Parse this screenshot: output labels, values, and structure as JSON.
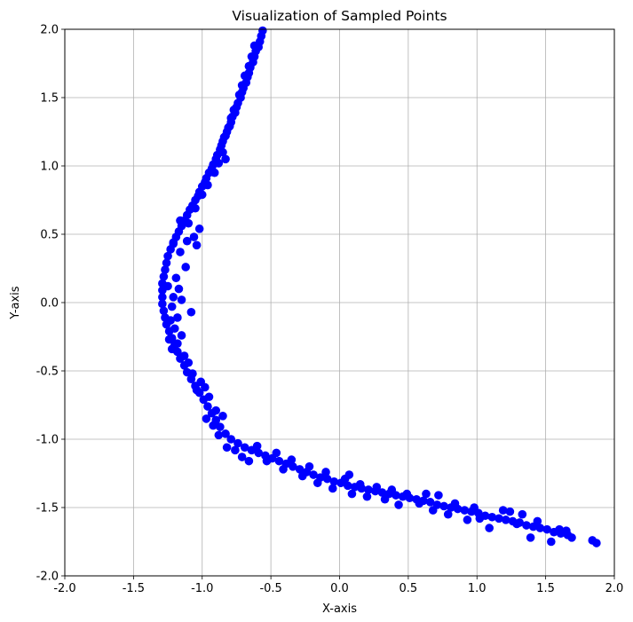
{
  "chart_data": {
    "type": "scatter",
    "title": "Visualization of Sampled Points",
    "xlabel": "X-axis",
    "ylabel": "Y-axis",
    "xlim": [
      -2.0,
      2.0
    ],
    "ylim": [
      -2.0,
      2.0
    ],
    "xticks": [
      "-2.0",
      "-1.5",
      "-1.0",
      "-0.5",
      "0.0",
      "0.5",
      "1.0",
      "1.5",
      "2.0"
    ],
    "yticks": [
      "-2.0",
      "-1.5",
      "-1.0",
      "-0.5",
      "0.0",
      "0.5",
      "1.0",
      "1.5",
      "2.0"
    ],
    "grid": true,
    "series": [
      {
        "color": "#0000ff",
        "points": [
          [
            -0.56,
            1.99
          ],
          [
            -0.57,
            1.95
          ],
          [
            -0.58,
            1.91
          ],
          [
            -0.59,
            1.87
          ],
          [
            -0.61,
            1.84
          ],
          [
            -0.62,
            1.8
          ],
          [
            -0.63,
            1.76
          ],
          [
            -0.65,
            1.72
          ],
          [
            -0.66,
            1.68
          ],
          [
            -0.67,
            1.65
          ],
          [
            -0.68,
            1.61
          ],
          [
            -0.7,
            1.57
          ],
          [
            -0.71,
            1.54
          ],
          [
            -0.72,
            1.5
          ],
          [
            -0.74,
            1.46
          ],
          [
            -0.75,
            1.43
          ],
          [
            -0.76,
            1.39
          ],
          [
            -0.78,
            1.36
          ],
          [
            -0.79,
            1.32
          ],
          [
            -0.8,
            1.29
          ],
          [
            -0.82,
            1.25
          ],
          [
            -0.83,
            1.22
          ],
          [
            -0.85,
            1.18
          ],
          [
            -0.86,
            1.15
          ],
          [
            -0.87,
            1.12
          ],
          [
            -0.89,
            1.08
          ],
          [
            -0.9,
            1.05
          ],
          [
            -0.92,
            1.01
          ],
          [
            -0.93,
            0.98
          ],
          [
            -0.95,
            0.95
          ],
          [
            -0.97,
            0.91
          ],
          [
            -0.98,
            0.88
          ],
          [
            -1.0,
            0.85
          ],
          [
            -1.02,
            0.81
          ],
          [
            -1.03,
            0.78
          ],
          [
            -1.05,
            0.75
          ],
          [
            -1.07,
            0.71
          ],
          [
            -1.09,
            0.68
          ],
          [
            -1.11,
            0.64
          ],
          [
            -1.13,
            0.6
          ],
          [
            -1.15,
            0.56
          ],
          [
            -1.17,
            0.52
          ],
          [
            -1.19,
            0.48
          ],
          [
            -1.21,
            0.44
          ],
          [
            -1.23,
            0.39
          ],
          [
            -1.25,
            0.34
          ],
          [
            -1.26,
            0.29
          ],
          [
            -1.27,
            0.24
          ],
          [
            -1.28,
            0.19
          ],
          [
            -1.29,
            0.14
          ],
          [
            -1.29,
            0.09
          ],
          [
            -1.29,
            0.04
          ],
          [
            -1.29,
            -0.01
          ],
          [
            -1.28,
            -0.06
          ],
          [
            -1.27,
            -0.11
          ],
          [
            -1.26,
            -0.16
          ],
          [
            -1.24,
            -0.21
          ],
          [
            -1.22,
            -0.26
          ],
          [
            -1.2,
            -0.31
          ],
          [
            -1.18,
            -0.36
          ],
          [
            -1.16,
            -0.41
          ],
          [
            -1.13,
            -0.46
          ],
          [
            -1.11,
            -0.51
          ],
          [
            -1.08,
            -0.56
          ],
          [
            -1.05,
            -0.61
          ],
          [
            -1.02,
            -0.66
          ],
          [
            -0.99,
            -0.71
          ],
          [
            -0.96,
            -0.76
          ],
          [
            -0.93,
            -0.81
          ],
          [
            -0.9,
            -0.86
          ],
          [
            -0.87,
            -0.91
          ],
          [
            -0.83,
            -0.96
          ],
          [
            -0.79,
            -1.0
          ],
          [
            -0.74,
            -1.03
          ],
          [
            -0.69,
            -1.06
          ],
          [
            -0.64,
            -1.08
          ],
          [
            -0.59,
            -1.1
          ],
          [
            -0.54,
            -1.12
          ],
          [
            -0.49,
            -1.14
          ],
          [
            -0.44,
            -1.16
          ],
          [
            -0.39,
            -1.18
          ],
          [
            -0.34,
            -1.2
          ],
          [
            -0.29,
            -1.22
          ],
          [
            -0.24,
            -1.24
          ],
          [
            -0.19,
            -1.26
          ],
          [
            -0.14,
            -1.28
          ],
          [
            -0.09,
            -1.29
          ],
          [
            -0.04,
            -1.31
          ],
          [
            0.01,
            -1.32
          ],
          [
            0.06,
            -1.34
          ],
          [
            0.11,
            -1.35
          ],
          [
            0.16,
            -1.36
          ],
          [
            0.21,
            -1.37
          ],
          [
            0.26,
            -1.38
          ],
          [
            0.31,
            -1.39
          ],
          [
            0.36,
            -1.4
          ],
          [
            0.41,
            -1.41
          ],
          [
            0.46,
            -1.42
          ],
          [
            0.51,
            -1.43
          ],
          [
            0.56,
            -1.44
          ],
          [
            0.61,
            -1.45
          ],
          [
            0.66,
            -1.46
          ],
          [
            0.71,
            -1.48
          ],
          [
            0.76,
            -1.49
          ],
          [
            0.81,
            -1.5
          ],
          [
            0.86,
            -1.51
          ],
          [
            0.91,
            -1.52
          ],
          [
            0.96,
            -1.53
          ],
          [
            1.01,
            -1.54
          ],
          [
            1.06,
            -1.56
          ],
          [
            1.11,
            -1.57
          ],
          [
            1.16,
            -1.58
          ],
          [
            1.21,
            -1.59
          ],
          [
            1.26,
            -1.6
          ],
          [
            1.31,
            -1.61
          ],
          [
            1.36,
            -1.63
          ],
          [
            1.41,
            -1.64
          ],
          [
            1.46,
            -1.65
          ],
          [
            1.51,
            -1.66
          ],
          [
            1.56,
            -1.68
          ],
          [
            1.61,
            -1.69
          ],
          [
            1.66,
            -1.7
          ],
          [
            1.69,
            -1.72
          ],
          [
            1.84,
            -1.74
          ],
          [
            1.87,
            -1.76
          ],
          [
            -0.62,
            1.88
          ],
          [
            -0.64,
            1.8
          ],
          [
            -0.66,
            1.73
          ],
          [
            -0.69,
            1.66
          ],
          [
            -0.71,
            1.59
          ],
          [
            -0.73,
            1.52
          ],
          [
            -0.77,
            1.41
          ],
          [
            -0.79,
            1.35
          ],
          [
            -0.81,
            1.28
          ],
          [
            -0.84,
            1.21
          ],
          [
            -0.85,
            1.1
          ],
          [
            -0.83,
            1.05
          ],
          [
            -0.88,
            1.02
          ],
          [
            -0.91,
            0.95
          ],
          [
            -0.96,
            0.86
          ],
          [
            -1.0,
            0.79
          ],
          [
            -1.05,
            0.69
          ],
          [
            -1.1,
            0.58
          ],
          [
            -1.16,
            0.6
          ],
          [
            -1.02,
            0.54
          ],
          [
            -1.06,
            0.48
          ],
          [
            -1.11,
            0.45
          ],
          [
            -1.04,
            0.42
          ],
          [
            -1.16,
            0.37
          ],
          [
            -1.21,
            0.43
          ],
          [
            -1.12,
            0.26
          ],
          [
            -1.19,
            0.18
          ],
          [
            -1.25,
            0.12
          ],
          [
            -1.17,
            0.1
          ],
          [
            -1.21,
            0.04
          ],
          [
            -1.15,
            0.02
          ],
          [
            -1.22,
            -0.03
          ],
          [
            -1.08,
            -0.07
          ],
          [
            -1.18,
            -0.11
          ],
          [
            -1.23,
            -0.13
          ],
          [
            -1.2,
            -0.19
          ],
          [
            -1.15,
            -0.24
          ],
          [
            -1.24,
            -0.27
          ],
          [
            -1.18,
            -0.3
          ],
          [
            -1.22,
            -0.34
          ],
          [
            -1.13,
            -0.39
          ],
          [
            -1.1,
            -0.44
          ],
          [
            -1.07,
            -0.52
          ],
          [
            -1.01,
            -0.58
          ],
          [
            -1.04,
            -0.64
          ],
          [
            -0.98,
            -0.62
          ],
          [
            -0.95,
            -0.69
          ],
          [
            -0.9,
            -0.79
          ],
          [
            -0.97,
            -0.85
          ],
          [
            -0.85,
            -0.83
          ],
          [
            -0.92,
            -0.9
          ],
          [
            -0.88,
            -0.97
          ],
          [
            -0.82,
            -1.06
          ],
          [
            -0.76,
            -1.08
          ],
          [
            -0.71,
            -1.13
          ],
          [
            -0.66,
            -1.16
          ],
          [
            -0.6,
            -1.05
          ],
          [
            -0.53,
            -1.16
          ],
          [
            -0.46,
            -1.1
          ],
          [
            -0.41,
            -1.22
          ],
          [
            -0.35,
            -1.15
          ],
          [
            -0.27,
            -1.27
          ],
          [
            -0.22,
            -1.2
          ],
          [
            -0.16,
            -1.32
          ],
          [
            -0.1,
            -1.24
          ],
          [
            -0.05,
            -1.36
          ],
          [
            0.04,
            -1.29
          ],
          [
            0.07,
            -1.26
          ],
          [
            0.09,
            -1.4
          ],
          [
            0.15,
            -1.33
          ],
          [
            0.2,
            -1.42
          ],
          [
            0.27,
            -1.35
          ],
          [
            0.33,
            -1.44
          ],
          [
            0.38,
            -1.37
          ],
          [
            0.43,
            -1.48
          ],
          [
            0.49,
            -1.4
          ],
          [
            0.58,
            -1.47
          ],
          [
            0.63,
            -1.4
          ],
          [
            0.68,
            -1.52
          ],
          [
            0.72,
            -1.41
          ],
          [
            0.79,
            -1.55
          ],
          [
            0.84,
            -1.47
          ],
          [
            0.93,
            -1.59
          ],
          [
            0.98,
            -1.5
          ],
          [
            1.02,
            -1.58
          ],
          [
            1.09,
            -1.65
          ],
          [
            1.19,
            -1.52
          ],
          [
            1.24,
            -1.53
          ],
          [
            1.29,
            -1.62
          ],
          [
            1.33,
            -1.55
          ],
          [
            1.39,
            -1.72
          ],
          [
            1.44,
            -1.6
          ],
          [
            1.54,
            -1.75
          ],
          [
            1.6,
            -1.66
          ],
          [
            1.65,
            -1.67
          ]
        ]
      }
    ]
  }
}
